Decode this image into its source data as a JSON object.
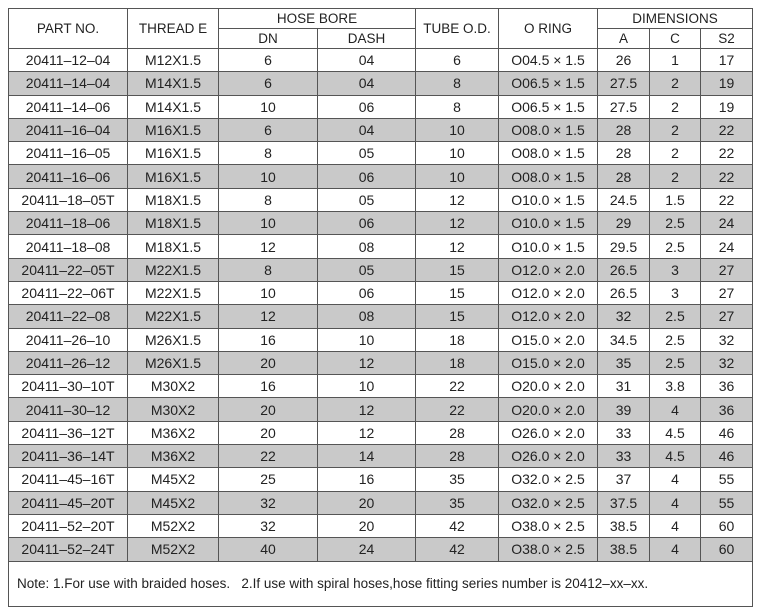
{
  "table": {
    "header_top": [
      "PART NO.",
      "THREAD E",
      "HOSE BORE",
      "TUBE O.D.",
      "O RING",
      "DIMENSIONS"
    ],
    "header_sub": [
      "DN",
      "DASH",
      "A",
      "C",
      "S2"
    ],
    "rows": [
      [
        "20411–12–04",
        "M12X1.5",
        "6",
        "04",
        "6",
        "O04.5 × 1.5",
        "26",
        "1",
        "17"
      ],
      [
        "20411–14–04",
        "M14X1.5",
        "6",
        "04",
        "8",
        "O06.5 × 1.5",
        "27.5",
        "2",
        "19"
      ],
      [
        "20411–14–06",
        "M14X1.5",
        "10",
        "06",
        "8",
        "O06.5 × 1.5",
        "27.5",
        "2",
        "19"
      ],
      [
        "20411–16–04",
        "M16X1.5",
        "6",
        "04",
        "10",
        "O08.0 × 1.5",
        "28",
        "2",
        "22"
      ],
      [
        "20411–16–05",
        "M16X1.5",
        "8",
        "05",
        "10",
        "O08.0 × 1.5",
        "28",
        "2",
        "22"
      ],
      [
        "20411–16–06",
        "M16X1.5",
        "10",
        "06",
        "10",
        "O08.0 × 1.5",
        "28",
        "2",
        "22"
      ],
      [
        "20411–18–05T",
        "M18X1.5",
        "8",
        "05",
        "12",
        "O10.0 × 1.5",
        "24.5",
        "1.5",
        "22"
      ],
      [
        "20411–18–06",
        "M18X1.5",
        "10",
        "06",
        "12",
        "O10.0 × 1.5",
        "29",
        "2.5",
        "24"
      ],
      [
        "20411–18–08",
        "M18X1.5",
        "12",
        "08",
        "12",
        "O10.0 × 1.5",
        "29.5",
        "2.5",
        "24"
      ],
      [
        "20411–22–05T",
        "M22X1.5",
        "8",
        "05",
        "15",
        "O12.0 × 2.0",
        "26.5",
        "3",
        "27"
      ],
      [
        "20411–22–06T",
        "M22X1.5",
        "10",
        "06",
        "15",
        "O12.0 × 2.0",
        "26.5",
        "3",
        "27"
      ],
      [
        "20411–22–08",
        "M22X1.5",
        "12",
        "08",
        "15",
        "O12.0 × 2.0",
        "32",
        "2.5",
        "27"
      ],
      [
        "20411–26–10",
        "M26X1.5",
        "16",
        "10",
        "18",
        "O15.0 × 2.0",
        "34.5",
        "2.5",
        "32"
      ],
      [
        "20411–26–12",
        "M26X1.5",
        "20",
        "12",
        "18",
        "O15.0 × 2.0",
        "35",
        "2.5",
        "32"
      ],
      [
        "20411–30–10T",
        "M30X2",
        "16",
        "10",
        "22",
        "O20.0 × 2.0",
        "31",
        "3.8",
        "36"
      ],
      [
        "20411–30–12",
        "M30X2",
        "20",
        "12",
        "22",
        "O20.0 × 2.0",
        "39",
        "4",
        "36"
      ],
      [
        "20411–36–12T",
        "M36X2",
        "20",
        "12",
        "28",
        "O26.0 × 2.0",
        "33",
        "4.5",
        "46"
      ],
      [
        "20411–36–14T",
        "M36X2",
        "22",
        "14",
        "28",
        "O26.0 × 2.0",
        "33",
        "4.5",
        "46"
      ],
      [
        "20411–45–16T",
        "M45X2",
        "25",
        "16",
        "35",
        "O32.0 × 2.5",
        "37",
        "4",
        "55"
      ],
      [
        "20411–45–20T",
        "M45X2",
        "32",
        "20",
        "35",
        "O32.0 × 2.5",
        "37.5",
        "4",
        "55"
      ],
      [
        "20411–52–20T",
        "M52X2",
        "32",
        "20",
        "42",
        "O38.0 × 2.5",
        "38.5",
        "4",
        "60"
      ],
      [
        "20411–52–24T",
        "M52X2",
        "40",
        "24",
        "42",
        "O38.0 × 2.5",
        "38.5",
        "4",
        "60"
      ]
    ],
    "note": "Note: 1.For use with braided hoses.   2.If use with spiral hoses,hose fitting series number is 20412–xx–xx."
  }
}
